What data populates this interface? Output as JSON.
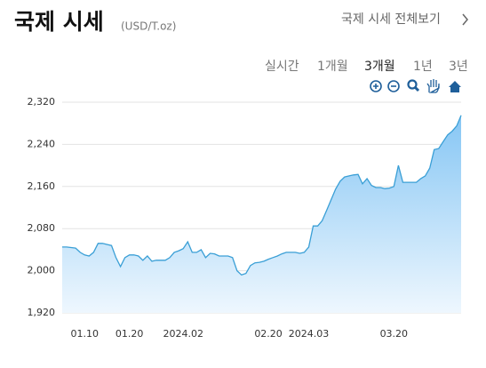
{
  "header": {
    "title": "국제 시세",
    "unit": "(USD/T.oz)",
    "link": "국제 시세 전체보기"
  },
  "tabs": [
    "실시간",
    "1개월",
    "3개월",
    "1년",
    "3년"
  ],
  "chart_data": {
    "type": "area",
    "color": "#3a9fd6",
    "grid": true,
    "categories": [
      null,
      null,
      null,
      null,
      null,
      "01.10",
      null,
      null,
      null,
      null,
      null,
      null,
      null,
      null,
      null,
      "01.20",
      null,
      null,
      null,
      null,
      null,
      null,
      null,
      null,
      null,
      null,
      null,
      "2024.02",
      null,
      null,
      null,
      null,
      null,
      null,
      null,
      null,
      null,
      null,
      null,
      null,
      null,
      null,
      null,
      null,
      null,
      null,
      "02.20",
      null,
      null,
      null,
      null,
      null,
      null,
      null,
      null,
      "2024.03",
      null,
      null,
      null,
      null,
      null,
      null,
      null,
      null,
      null,
      null,
      null,
      null,
      null,
      null,
      null,
      null,
      null,
      null,
      "03.20",
      null,
      null,
      null,
      null,
      null,
      null,
      null,
      null,
      null,
      null,
      null,
      null,
      null,
      null,
      null
    ],
    "values": [
      2045,
      2045,
      2044,
      2043,
      2035,
      2030,
      2028,
      2035,
      2052,
      2052,
      2050,
      2048,
      2025,
      2008,
      2025,
      2030,
      2030,
      2028,
      2020,
      2028,
      2018,
      2020,
      2020,
      2020,
      2025,
      2035,
      2038,
      2042,
      2055,
      2035,
      2035,
      2040,
      2025,
      2033,
      2032,
      2028,
      2028,
      2028,
      2025,
      2000,
      1992,
      1995,
      2010,
      2015,
      2016,
      2018,
      2022,
      2025,
      2028,
      2032,
      2035,
      2035,
      2035,
      2033,
      2035,
      2045,
      2085,
      2085,
      2095,
      2115,
      2135,
      2155,
      2170,
      2178,
      2180,
      2182,
      2183,
      2165,
      2175,
      2162,
      2158,
      2158,
      2156,
      2157,
      2160,
      2200,
      2168,
      2168,
      2168,
      2168,
      2175,
      2180,
      2195,
      2230,
      2232,
      2245,
      2258,
      2265,
      2275,
      2295
    ],
    "ylim": [
      1920,
      2320
    ],
    "yticks": [
      {
        "value": 1920,
        "label": "1,920"
      },
      {
        "value": 2000,
        "label": "2,000"
      },
      {
        "value": 2080,
        "label": "2,080"
      },
      {
        "value": 2160,
        "label": "2,160"
      },
      {
        "value": 2240,
        "label": "2,240"
      },
      {
        "value": 2320,
        "label": "2,320"
      }
    ]
  }
}
